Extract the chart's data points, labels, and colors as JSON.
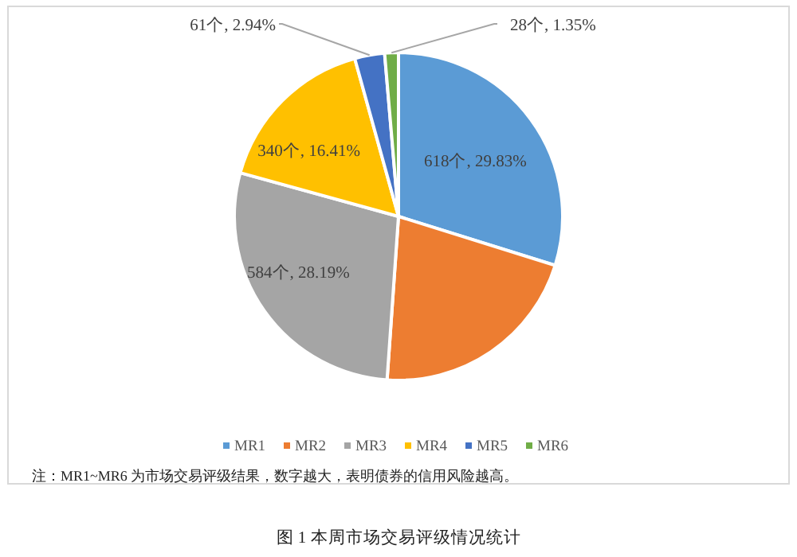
{
  "chart_data": {
    "type": "pie",
    "title": "图 1  本周市场交易评级情况统计",
    "categories": [
      "MR1",
      "MR2",
      "MR3",
      "MR4",
      "MR5",
      "MR6"
    ],
    "values": [
      618,
      441,
      584,
      340,
      61,
      28
    ],
    "colors": [
      "#5b9bd5",
      "#ed7d31",
      "#a5a5a5",
      "#ffc000",
      "#4472c4",
      "#70ad47"
    ],
    "value_labels": [
      "618个, 29.83%",
      null,
      "584个, 28.19%",
      "340个, 16.41%",
      "61个, 2.94%",
      "28个, 1.35%"
    ],
    "legend": "bottom",
    "annotations": [
      "注：MR1~MR6 为市场交易评级结果，数字越大，表明债券的信用风险越高。"
    ]
  }
}
